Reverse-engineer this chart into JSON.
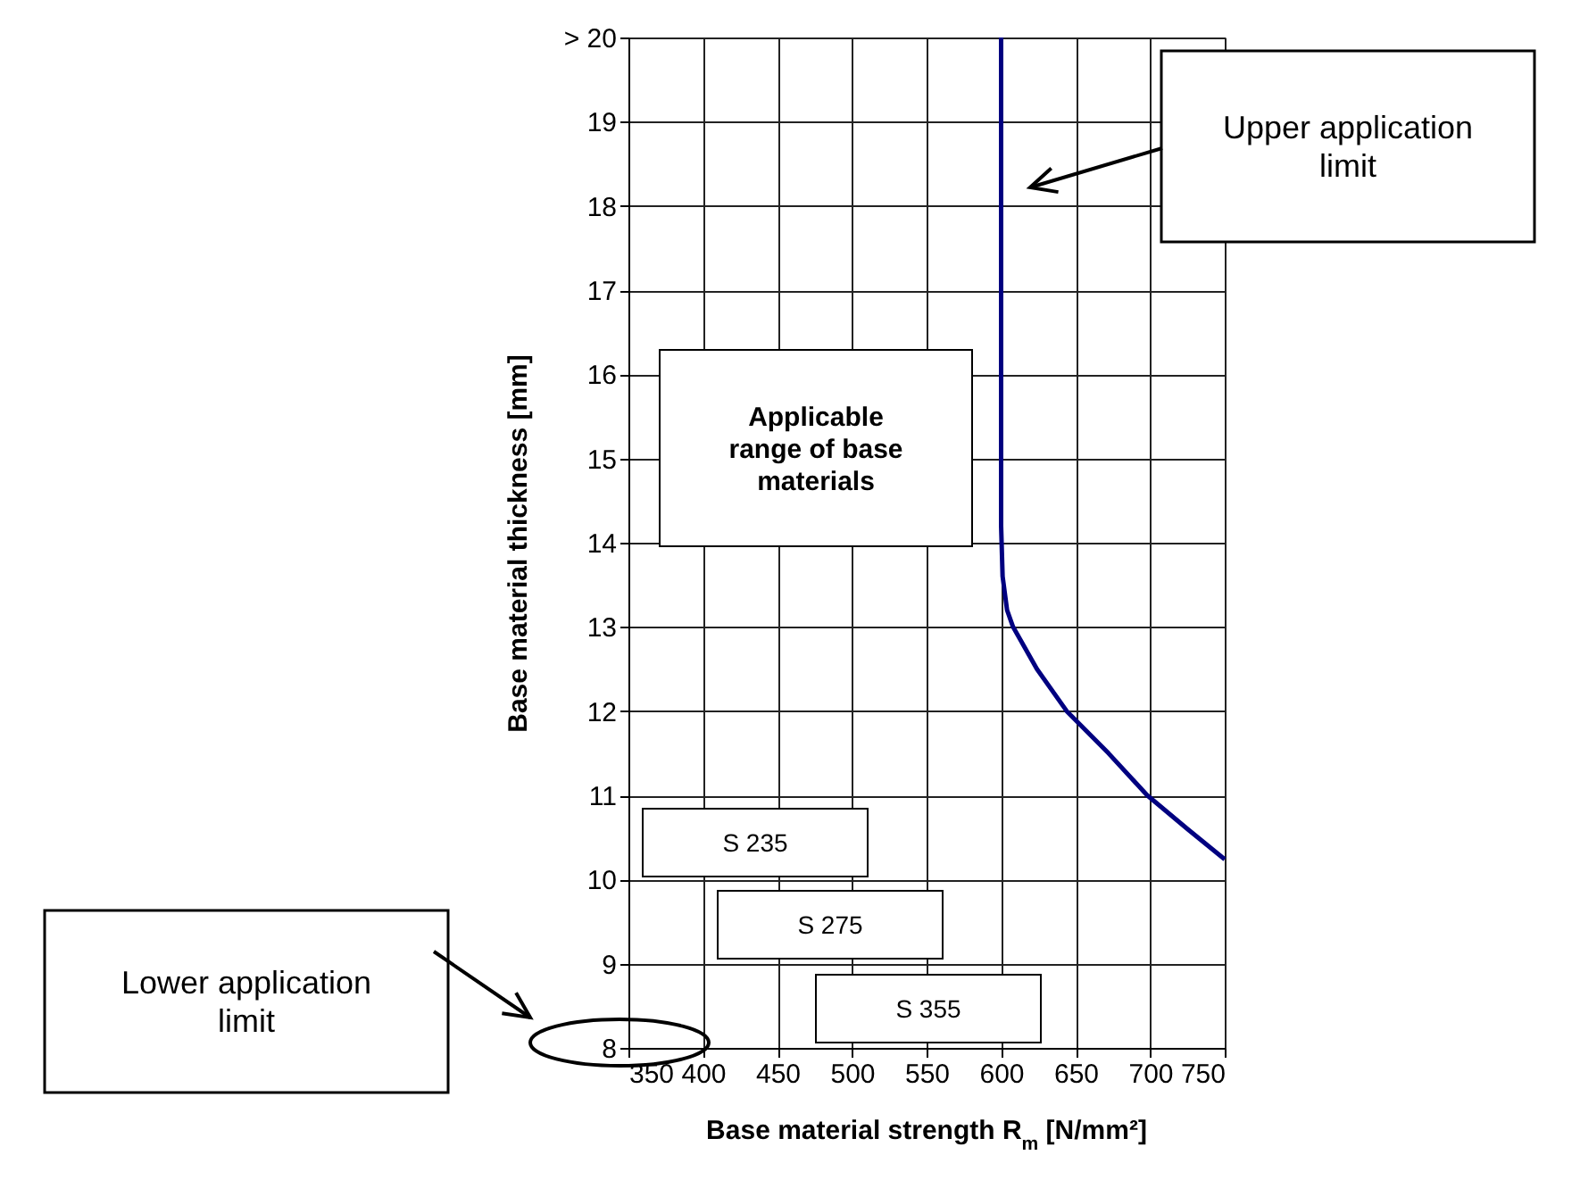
{
  "chart_data": {
    "type": "line",
    "xlabel": "Base material strength R$_{m}$ [N/mm²]",
    "ylabel": "Base material thickness [mm]",
    "xlim": [
      350,
      750
    ],
    "ylim": [
      8,
      20
    ],
    "xticks": [
      350,
      400,
      450,
      500,
      550,
      600,
      650,
      700,
      750
    ],
    "yticks": [
      8,
      9,
      10,
      11,
      12,
      13,
      14,
      15,
      16,
      17,
      18,
      19,
      {
        "value": 20,
        "label": "> 20"
      }
    ],
    "grid": true,
    "series": [
      {
        "color": "#000080",
        "x": [
          600,
          600,
          601,
          604,
          608,
          624,
          644,
          672,
          698,
          725,
          750
        ],
        "values": [
          20,
          14.2,
          13.6,
          13.2,
          13,
          12.5,
          12,
          11.5,
          11,
          10.6,
          10.24
        ]
      }
    ],
    "annotations": [
      "Upper application limit",
      "Lower application limit",
      "Applicable range of base materials",
      "S 235",
      "S 275",
      "S 355"
    ]
  }
}
